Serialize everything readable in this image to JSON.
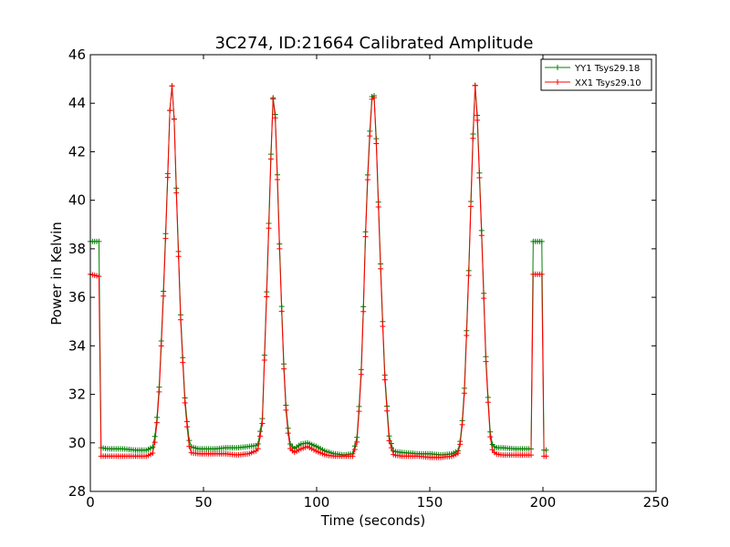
{
  "chart_data": {
    "type": "line",
    "title": "3C274, ID:21664 Calibrated Amplitude",
    "xlabel": "Time (seconds)",
    "ylabel": "Power in Kelvin",
    "xlim": [
      0,
      250
    ],
    "ylim": [
      28,
      46
    ],
    "xticks": [
      0,
      50,
      100,
      150,
      200,
      250
    ],
    "yticks": [
      28,
      30,
      32,
      34,
      36,
      38,
      40,
      42,
      44,
      46
    ],
    "grid": false,
    "legend_position": "top-right",
    "marker": "+",
    "series": [
      {
        "name": "YY1 Tsys29.18",
        "color": "#008000",
        "x": [
          0,
          4.5,
          4.6,
          8,
          15,
          20,
          25,
          28,
          30,
          32,
          34,
          35,
          36,
          37,
          38,
          40,
          42,
          44,
          48,
          55,
          60,
          65,
          70,
          74,
          76,
          78,
          80,
          81,
          82,
          84,
          86,
          88,
          90,
          93,
          96,
          100,
          104,
          108,
          112,
          116,
          118,
          120,
          122,
          124,
          125,
          126,
          128,
          130,
          132,
          134,
          138,
          145,
          150,
          155,
          160,
          163,
          165,
          167,
          169,
          170,
          171,
          173,
          175,
          177,
          179,
          182,
          188,
          195,
          195.4,
          199.5,
          199.6,
          202
        ],
        "values": [
          38.3,
          38.3,
          29.8,
          29.75,
          29.75,
          29.7,
          29.7,
          29.85,
          31.5,
          35.5,
          40.5,
          43.5,
          44.85,
          43.5,
          40.5,
          35.0,
          31.5,
          29.85,
          29.75,
          29.75,
          29.8,
          29.8,
          29.85,
          29.9,
          31.0,
          36.5,
          42.5,
          44.8,
          43.0,
          37.0,
          32.0,
          30.0,
          29.75,
          29.95,
          30.0,
          29.85,
          29.65,
          29.55,
          29.5,
          29.55,
          30.3,
          33.5,
          40.0,
          43.8,
          44.85,
          43.5,
          38.0,
          33.0,
          30.3,
          29.65,
          29.6,
          29.55,
          29.55,
          29.5,
          29.55,
          29.7,
          31.5,
          36.5,
          42.5,
          44.8,
          43.5,
          38.5,
          33.0,
          30.0,
          29.8,
          29.8,
          29.75,
          29.75,
          38.3,
          38.3,
          29.7,
          29.7
        ]
      },
      {
        "name": "XX1 Tsys29.10",
        "color": "#ff0000",
        "x": [
          0,
          4.5,
          4.6,
          8,
          15,
          20,
          25,
          28,
          30,
          32,
          34,
          35,
          36,
          37,
          38,
          40,
          42,
          44,
          48,
          55,
          60,
          65,
          70,
          74,
          76,
          78,
          80,
          81,
          82,
          84,
          86,
          88,
          90,
          93,
          96,
          100,
          104,
          108,
          112,
          116,
          118,
          120,
          122,
          124,
          125,
          126,
          128,
          130,
          132,
          134,
          138,
          145,
          150,
          155,
          160,
          163,
          165,
          167,
          169,
          170,
          171,
          173,
          175,
          177,
          179,
          182,
          188,
          195,
          195.4,
          199.5,
          199.6,
          202
        ],
        "values": [
          36.95,
          36.85,
          29.45,
          29.45,
          29.45,
          29.45,
          29.45,
          29.6,
          31.3,
          35.3,
          40.3,
          43.5,
          44.85,
          43.5,
          40.3,
          34.8,
          31.3,
          29.6,
          29.55,
          29.55,
          29.55,
          29.5,
          29.55,
          29.7,
          30.8,
          36.3,
          42.3,
          44.8,
          42.8,
          36.8,
          31.8,
          29.8,
          29.6,
          29.75,
          29.85,
          29.65,
          29.5,
          29.45,
          29.45,
          29.45,
          30.1,
          33.3,
          39.8,
          43.6,
          44.85,
          43.3,
          37.8,
          32.8,
          30.1,
          29.5,
          29.45,
          29.45,
          29.4,
          29.4,
          29.45,
          29.6,
          31.3,
          36.3,
          42.3,
          44.8,
          43.3,
          38.3,
          32.8,
          29.8,
          29.55,
          29.5,
          29.5,
          29.5,
          36.95,
          36.95,
          29.45,
          29.45
        ]
      }
    ]
  }
}
